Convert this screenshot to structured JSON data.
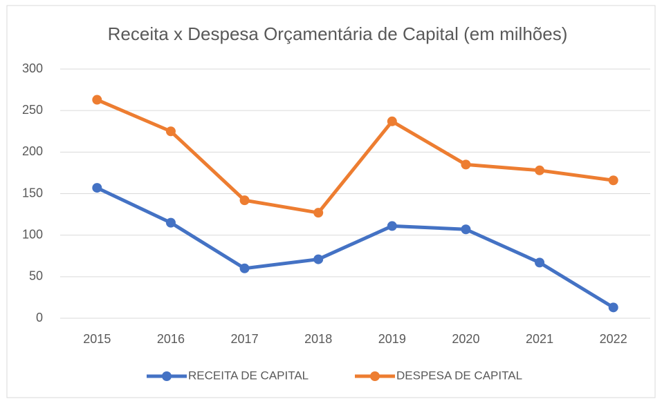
{
  "chart_data": {
    "type": "line",
    "title": "Receita x Despesa Orçamentária de Capital (em milhões)",
    "categories": [
      "2015",
      "2016",
      "2017",
      "2018",
      "2019",
      "2020",
      "2021",
      "2022"
    ],
    "series": [
      {
        "name": "RECEITA DE CAPITAL",
        "color": "#4472c4",
        "values": [
          157,
          115,
          60,
          71,
          111,
          107,
          67,
          13
        ]
      },
      {
        "name": "DESPESA DE CAPITAL",
        "color": "#ed7d31",
        "values": [
          263,
          225,
          142,
          127,
          237,
          185,
          178,
          166
        ]
      }
    ],
    "ylim": [
      0,
      300
    ],
    "yticks": [
      0,
      50,
      100,
      150,
      200,
      250,
      300
    ],
    "grid": true,
    "legend": "bottom"
  }
}
